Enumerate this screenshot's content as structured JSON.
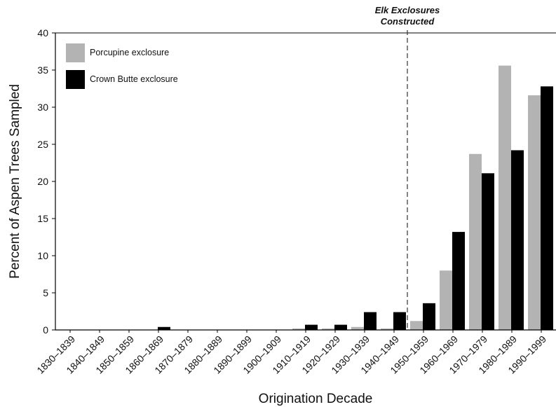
{
  "chart_data": {
    "type": "bar",
    "title": "",
    "xlabel": "Origination Decade",
    "ylabel": "Percent of Aspen Trees Sampled",
    "ylim": [
      0,
      40
    ],
    "yticks": [
      0,
      5,
      10,
      15,
      20,
      25,
      30,
      35,
      40
    ],
    "grid": false,
    "legend_position": "top-left",
    "categories": [
      "1830–1839",
      "1840–1849",
      "1850–1859",
      "1860–1869",
      "1870–1879",
      "1880–1889",
      "1890–1899",
      "1900–1909",
      "1910–1919",
      "1920–1929",
      "1930–1939",
      "1940–1949",
      "1950–1959",
      "1960–1969",
      "1970–1979",
      "1980–1989",
      "1990–1999"
    ],
    "series": [
      {
        "name": "Porcupine exclosure",
        "color": "#b3b3b3",
        "values": [
          0,
          0,
          0,
          0,
          0,
          0,
          0,
          0,
          0.2,
          0.2,
          0.4,
          0.2,
          1.2,
          8.0,
          23.7,
          35.6,
          31.6
        ]
      },
      {
        "name": "Crown Butte exclosure",
        "color": "#000000",
        "values": [
          0,
          0,
          0,
          0.4,
          0,
          0,
          0,
          0,
          0.7,
          0.7,
          2.4,
          2.4,
          3.6,
          13.2,
          21.1,
          24.2,
          32.8
        ]
      }
    ],
    "annotations": [
      {
        "text_lines": [
          "Elk Exclosures",
          "Constructed"
        ],
        "style": "dashed vertical line",
        "between_categories": [
          "1940–1949",
          "1950–1959"
        ]
      }
    ]
  }
}
